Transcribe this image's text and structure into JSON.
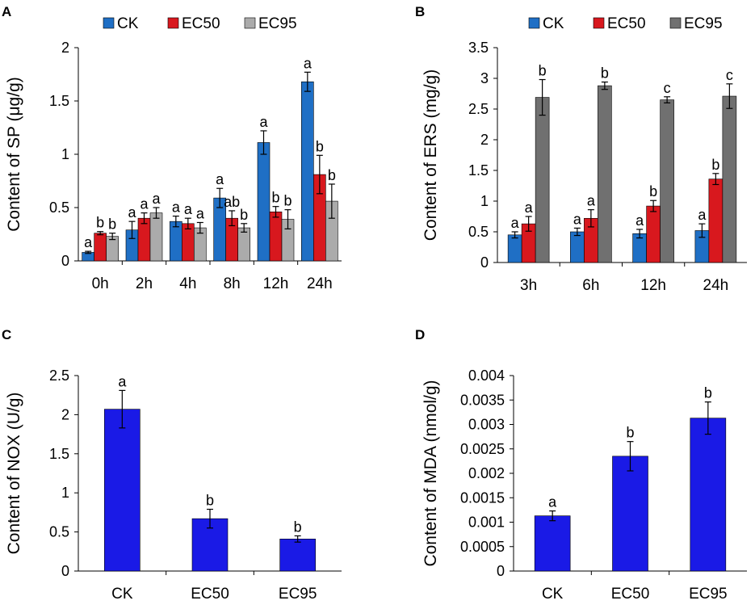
{
  "panels": {
    "A": {
      "letter": "A"
    },
    "B": {
      "letter": "B"
    },
    "C": {
      "letter": "C"
    },
    "D": {
      "letter": "D"
    }
  },
  "chart_data": [
    {
      "id": "A",
      "type": "bar",
      "ylabel": "Content of SP (μg/g)",
      "ylim": [
        0,
        2
      ],
      "yticks": [
        {
          "value": 0,
          "label": "0"
        },
        {
          "value": 0.5,
          "label": "0.5"
        },
        {
          "value": 1,
          "label": "1"
        },
        {
          "value": 1.5,
          "label": "1.5"
        },
        {
          "value": 2,
          "label": "2"
        }
      ],
      "categories": [
        "0h",
        "2h",
        "4h",
        "8h",
        "12h",
        "24h"
      ],
      "legend": [
        "CK",
        "EC50",
        "EC95"
      ],
      "series": [
        {
          "name": "CK",
          "color": "#1f6fc5",
          "values": [
            0.08,
            0.29,
            0.37,
            0.59,
            1.11,
            1.68
          ],
          "errors": [
            0.01,
            0.08,
            0.05,
            0.09,
            0.11,
            0.09
          ],
          "labels": [
            "a",
            "a",
            "a",
            "a",
            "a",
            "a"
          ]
        },
        {
          "name": "EC50",
          "color": "#d8181e",
          "values": [
            0.26,
            0.4,
            0.35,
            0.4,
            0.46,
            0.81
          ],
          "errors": [
            0.015,
            0.05,
            0.05,
            0.07,
            0.05,
            0.18
          ],
          "labels": [
            "b",
            "a",
            "a",
            "ab",
            "b",
            "b"
          ]
        },
        {
          "name": "EC95",
          "color": "#ababab",
          "values": [
            0.23,
            0.45,
            0.31,
            0.31,
            0.39,
            0.56
          ],
          "errors": [
            0.03,
            0.05,
            0.05,
            0.04,
            0.09,
            0.16
          ],
          "labels": [
            "b",
            "a",
            "a",
            "b",
            "b",
            "b"
          ]
        }
      ]
    },
    {
      "id": "B",
      "type": "bar",
      "ylabel": "Content of ERS (mg/g)",
      "ylim": [
        0,
        3.5
      ],
      "yticks": [
        {
          "value": 0,
          "label": "0"
        },
        {
          "value": 0.5,
          "label": "0.5"
        },
        {
          "value": 1,
          "label": "1"
        },
        {
          "value": 1.5,
          "label": "1.5"
        },
        {
          "value": 2,
          "label": "2"
        },
        {
          "value": 2.5,
          "label": "2.5"
        },
        {
          "value": 3,
          "label": "3"
        },
        {
          "value": 3.5,
          "label": "3.5"
        }
      ],
      "categories": [
        "3h",
        "6h",
        "12h",
        "24h"
      ],
      "legend": [
        "CK",
        "EC50",
        "EC95"
      ],
      "series": [
        {
          "name": "CK",
          "color": "#1f6fc5",
          "values": [
            0.45,
            0.5,
            0.47,
            0.52
          ],
          "errors": [
            0.05,
            0.06,
            0.07,
            0.11
          ],
          "labels": [
            "a",
            "a",
            "a",
            "a"
          ]
        },
        {
          "name": "EC50",
          "color": "#d8181e",
          "values": [
            0.63,
            0.72,
            0.92,
            1.36
          ],
          "errors": [
            0.12,
            0.14,
            0.09,
            0.09
          ],
          "labels": [
            "a",
            "a",
            "b",
            "b"
          ]
        },
        {
          "name": "EC95",
          "color": "#707070",
          "values": [
            2.69,
            2.88,
            2.65,
            2.71
          ],
          "errors": [
            0.29,
            0.06,
            0.05,
            0.2
          ],
          "labels": [
            "b",
            "b",
            "c",
            "c"
          ]
        }
      ]
    },
    {
      "id": "C",
      "type": "bar",
      "ylabel": "Content of NOX (U/g)",
      "ylim": [
        0,
        2.5
      ],
      "yticks": [
        {
          "value": 0,
          "label": "0"
        },
        {
          "value": 0.5,
          "label": "0.5"
        },
        {
          "value": 1,
          "label": "1"
        },
        {
          "value": 1.5,
          "label": "1.5"
        },
        {
          "value": 2,
          "label": "2"
        },
        {
          "value": 2.5,
          "label": "2.5"
        }
      ],
      "categories": [
        "CK",
        "EC50",
        "EC95"
      ],
      "series": [
        {
          "name": "NOX",
          "color": "#1a1ae6",
          "values": [
            2.07,
            0.67,
            0.41
          ],
          "errors": [
            0.24,
            0.12,
            0.04
          ],
          "labels": [
            "a",
            "b",
            "b"
          ]
        }
      ]
    },
    {
      "id": "D",
      "type": "bar",
      "ylabel": "Content of MDA (nmol/g)",
      "ylim": [
        0,
        0.004
      ],
      "yticks": [
        {
          "value": 0,
          "label": "0"
        },
        {
          "value": 0.0005,
          "label": "0.0005"
        },
        {
          "value": 0.001,
          "label": "0.001"
        },
        {
          "value": 0.0015,
          "label": "0.0015"
        },
        {
          "value": 0.002,
          "label": "0.002"
        },
        {
          "value": 0.0025,
          "label": "0.0025"
        },
        {
          "value": 0.003,
          "label": "0.003"
        },
        {
          "value": 0.0035,
          "label": "0.0035"
        },
        {
          "value": 0.004,
          "label": "0.004"
        }
      ],
      "categories": [
        "CK",
        "EC50",
        "EC95"
      ],
      "series": [
        {
          "name": "MDA",
          "color": "#1a1ae6",
          "values": [
            0.00113,
            0.00235,
            0.00313
          ],
          "errors": [
            0.0001,
            0.0003,
            0.00033
          ],
          "labels": [
            "a",
            "b",
            "b"
          ]
        }
      ]
    }
  ]
}
